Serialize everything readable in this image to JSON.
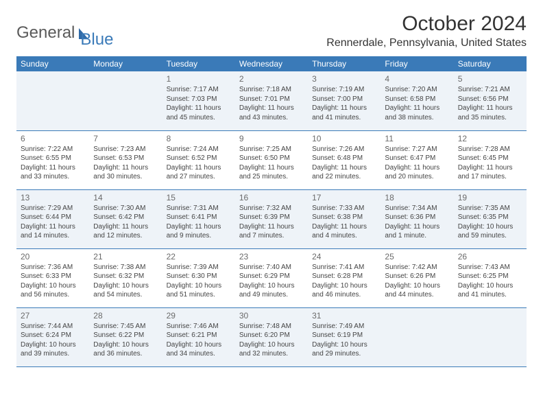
{
  "logo": {
    "text1": "General",
    "text2": "Blue",
    "sail_color": "#2f6aa8"
  },
  "title": "October 2024",
  "location": "Rennerdale, Pennsylvania, United States",
  "colors": {
    "header_bg": "#3a7ab8",
    "alt_row_bg": "#eef3f8",
    "border": "#3a7ab8"
  },
  "day_headers": [
    "Sunday",
    "Monday",
    "Tuesday",
    "Wednesday",
    "Thursday",
    "Friday",
    "Saturday"
  ],
  "weeks": [
    [
      null,
      null,
      {
        "n": "1",
        "sr": "Sunrise: 7:17 AM",
        "ss": "Sunset: 7:03 PM",
        "dl1": "Daylight: 11 hours",
        "dl2": "and 45 minutes."
      },
      {
        "n": "2",
        "sr": "Sunrise: 7:18 AM",
        "ss": "Sunset: 7:01 PM",
        "dl1": "Daylight: 11 hours",
        "dl2": "and 43 minutes."
      },
      {
        "n": "3",
        "sr": "Sunrise: 7:19 AM",
        "ss": "Sunset: 7:00 PM",
        "dl1": "Daylight: 11 hours",
        "dl2": "and 41 minutes."
      },
      {
        "n": "4",
        "sr": "Sunrise: 7:20 AM",
        "ss": "Sunset: 6:58 PM",
        "dl1": "Daylight: 11 hours",
        "dl2": "and 38 minutes."
      },
      {
        "n": "5",
        "sr": "Sunrise: 7:21 AM",
        "ss": "Sunset: 6:56 PM",
        "dl1": "Daylight: 11 hours",
        "dl2": "and 35 minutes."
      }
    ],
    [
      {
        "n": "6",
        "sr": "Sunrise: 7:22 AM",
        "ss": "Sunset: 6:55 PM",
        "dl1": "Daylight: 11 hours",
        "dl2": "and 33 minutes."
      },
      {
        "n": "7",
        "sr": "Sunrise: 7:23 AM",
        "ss": "Sunset: 6:53 PM",
        "dl1": "Daylight: 11 hours",
        "dl2": "and 30 minutes."
      },
      {
        "n": "8",
        "sr": "Sunrise: 7:24 AM",
        "ss": "Sunset: 6:52 PM",
        "dl1": "Daylight: 11 hours",
        "dl2": "and 27 minutes."
      },
      {
        "n": "9",
        "sr": "Sunrise: 7:25 AM",
        "ss": "Sunset: 6:50 PM",
        "dl1": "Daylight: 11 hours",
        "dl2": "and 25 minutes."
      },
      {
        "n": "10",
        "sr": "Sunrise: 7:26 AM",
        "ss": "Sunset: 6:48 PM",
        "dl1": "Daylight: 11 hours",
        "dl2": "and 22 minutes."
      },
      {
        "n": "11",
        "sr": "Sunrise: 7:27 AM",
        "ss": "Sunset: 6:47 PM",
        "dl1": "Daylight: 11 hours",
        "dl2": "and 20 minutes."
      },
      {
        "n": "12",
        "sr": "Sunrise: 7:28 AM",
        "ss": "Sunset: 6:45 PM",
        "dl1": "Daylight: 11 hours",
        "dl2": "and 17 minutes."
      }
    ],
    [
      {
        "n": "13",
        "sr": "Sunrise: 7:29 AM",
        "ss": "Sunset: 6:44 PM",
        "dl1": "Daylight: 11 hours",
        "dl2": "and 14 minutes."
      },
      {
        "n": "14",
        "sr": "Sunrise: 7:30 AM",
        "ss": "Sunset: 6:42 PM",
        "dl1": "Daylight: 11 hours",
        "dl2": "and 12 minutes."
      },
      {
        "n": "15",
        "sr": "Sunrise: 7:31 AM",
        "ss": "Sunset: 6:41 PM",
        "dl1": "Daylight: 11 hours",
        "dl2": "and 9 minutes."
      },
      {
        "n": "16",
        "sr": "Sunrise: 7:32 AM",
        "ss": "Sunset: 6:39 PM",
        "dl1": "Daylight: 11 hours",
        "dl2": "and 7 minutes."
      },
      {
        "n": "17",
        "sr": "Sunrise: 7:33 AM",
        "ss": "Sunset: 6:38 PM",
        "dl1": "Daylight: 11 hours",
        "dl2": "and 4 minutes."
      },
      {
        "n": "18",
        "sr": "Sunrise: 7:34 AM",
        "ss": "Sunset: 6:36 PM",
        "dl1": "Daylight: 11 hours",
        "dl2": "and 1 minute."
      },
      {
        "n": "19",
        "sr": "Sunrise: 7:35 AM",
        "ss": "Sunset: 6:35 PM",
        "dl1": "Daylight: 10 hours",
        "dl2": "and 59 minutes."
      }
    ],
    [
      {
        "n": "20",
        "sr": "Sunrise: 7:36 AM",
        "ss": "Sunset: 6:33 PM",
        "dl1": "Daylight: 10 hours",
        "dl2": "and 56 minutes."
      },
      {
        "n": "21",
        "sr": "Sunrise: 7:38 AM",
        "ss": "Sunset: 6:32 PM",
        "dl1": "Daylight: 10 hours",
        "dl2": "and 54 minutes."
      },
      {
        "n": "22",
        "sr": "Sunrise: 7:39 AM",
        "ss": "Sunset: 6:30 PM",
        "dl1": "Daylight: 10 hours",
        "dl2": "and 51 minutes."
      },
      {
        "n": "23",
        "sr": "Sunrise: 7:40 AM",
        "ss": "Sunset: 6:29 PM",
        "dl1": "Daylight: 10 hours",
        "dl2": "and 49 minutes."
      },
      {
        "n": "24",
        "sr": "Sunrise: 7:41 AM",
        "ss": "Sunset: 6:28 PM",
        "dl1": "Daylight: 10 hours",
        "dl2": "and 46 minutes."
      },
      {
        "n": "25",
        "sr": "Sunrise: 7:42 AM",
        "ss": "Sunset: 6:26 PM",
        "dl1": "Daylight: 10 hours",
        "dl2": "and 44 minutes."
      },
      {
        "n": "26",
        "sr": "Sunrise: 7:43 AM",
        "ss": "Sunset: 6:25 PM",
        "dl1": "Daylight: 10 hours",
        "dl2": "and 41 minutes."
      }
    ],
    [
      {
        "n": "27",
        "sr": "Sunrise: 7:44 AM",
        "ss": "Sunset: 6:24 PM",
        "dl1": "Daylight: 10 hours",
        "dl2": "and 39 minutes."
      },
      {
        "n": "28",
        "sr": "Sunrise: 7:45 AM",
        "ss": "Sunset: 6:22 PM",
        "dl1": "Daylight: 10 hours",
        "dl2": "and 36 minutes."
      },
      {
        "n": "29",
        "sr": "Sunrise: 7:46 AM",
        "ss": "Sunset: 6:21 PM",
        "dl1": "Daylight: 10 hours",
        "dl2": "and 34 minutes."
      },
      {
        "n": "30",
        "sr": "Sunrise: 7:48 AM",
        "ss": "Sunset: 6:20 PM",
        "dl1": "Daylight: 10 hours",
        "dl2": "and 32 minutes."
      },
      {
        "n": "31",
        "sr": "Sunrise: 7:49 AM",
        "ss": "Sunset: 6:19 PM",
        "dl1": "Daylight: 10 hours",
        "dl2": "and 29 minutes."
      },
      null,
      null
    ]
  ]
}
